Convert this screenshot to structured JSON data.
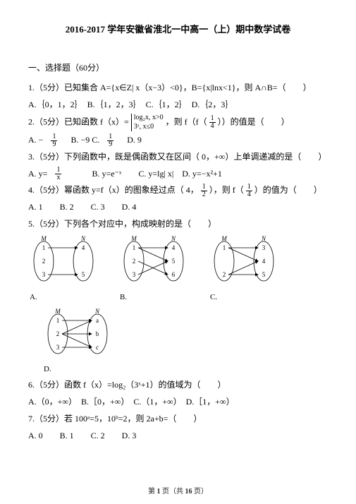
{
  "title": "2016-2017 学年安徽省淮北一中高一（上）期中数学试卷",
  "section1": "一、选择题（60分）",
  "q1": {
    "stem": "1.（5分）已知集合  A={x∈Z| x（x−3）<0}，B={x|lnx<1}，则 A∩B=（　　）",
    "opts": "A.｛0，1，2｝　B.｛1，2，3｝　C.｛1，2｝　D.｛2，3｝"
  },
  "q2": {
    "stem_a": "2.（5分）已知函数  f（x）=",
    "case_top": "log₂x,  x>0",
    "case_bot": "3ˣ,   x≤0",
    "stem_b": "，则 f（f（",
    "frac_a": {
      "n": "1",
      "d": "4"
    },
    "stem_c": "））的值是（　　）",
    "opts_a": "A. −",
    "opts_a_frac": {
      "n": "1",
      "d": "9"
    },
    "opts_b": " B. −9  C. ",
    "opts_c_frac": {
      "n": "1",
      "d": "9"
    },
    "opts_d": "  D. 9"
  },
  "q3": {
    "stem": "3.（5分）下列函数中，既是偶函数又在区间（ 0，+∞）上单调递减的是（　　）",
    "opts_a": "A.  y=",
    "opts_a_frac": {
      "n": "1",
      "d": "x"
    },
    "opts_b": "　　B.  y=e⁻ˣ　　C.  y=lg| x|　D.  y=−x²+1"
  },
  "q4": {
    "stem_a": "4.（5分）幂函数  y=f（x）的图象经过点（ 4，",
    "frac": {
      "n": "1",
      "d": "2"
    },
    "stem_b": "），则 f（",
    "frac2": {
      "n": "1",
      "d": "4"
    },
    "stem_c": "）的值为（　　）",
    "opts": "A. 1　　B. 2　　C. 3　　D. 4"
  },
  "q5": {
    "stem": "5.（5分）下列各个对应中，构成映射的是（　　）",
    "labels": {
      "A": "A.",
      "B": "B.",
      "C": "C.",
      "D": "D."
    },
    "M": "M",
    "N": "N",
    "dA": {
      "left": [
        "1",
        "2",
        "3"
      ],
      "right": [
        "4",
        "5"
      ],
      "edges": [
        [
          0,
          0
        ],
        [
          2,
          1
        ]
      ]
    },
    "dB": {
      "left": [
        "1",
        "2",
        "3"
      ],
      "right": [
        "4",
        "5",
        "6"
      ],
      "edges": [
        [
          0,
          0
        ],
        [
          0,
          1
        ],
        [
          1,
          2
        ],
        [
          2,
          1
        ]
      ]
    },
    "dC": {
      "left": [
        "1",
        "2"
      ],
      "right": [
        "3",
        "4",
        "5"
      ],
      "edges": [
        [
          0,
          0
        ],
        [
          0,
          1
        ],
        [
          1,
          1
        ],
        [
          1,
          2
        ]
      ]
    },
    "dD": {
      "left": [
        "1",
        "2",
        "3"
      ],
      "right": [
        "a",
        "b",
        "c"
      ],
      "edges": [
        [
          0,
          0
        ],
        [
          1,
          0
        ],
        [
          1,
          1
        ],
        [
          1,
          2
        ],
        [
          2,
          2
        ]
      ]
    }
  },
  "q6": {
    "stem": "6.（5分）函数  f（x）=log₂（3ˣ+1）的值域为（　　）",
    "opts": "A.（0，+∞）　B.［0，+∞）　C.（1，+∞）　D.［1，+∞）"
  },
  "q7": {
    "stem": "7.（5分）若  100ᵃ=5，10ᵇ=2，则 2a+b=（　　）",
    "opts": "A. 0　　B. 1　　C. 2　　D. 3"
  },
  "footer_a": "第 ",
  "footer_b": "1",
  "footer_c": " 页（共 ",
  "footer_d": "16",
  "footer_e": " 页）",
  "svg_style": {
    "ellipse_stroke": "#000000",
    "ellipse_fill": "none",
    "ellipse_sw": "0.8",
    "arrow_stroke": "#000000",
    "arrow_sw": "0.8",
    "text_fill": "#000000",
    "text_size": "9"
  }
}
